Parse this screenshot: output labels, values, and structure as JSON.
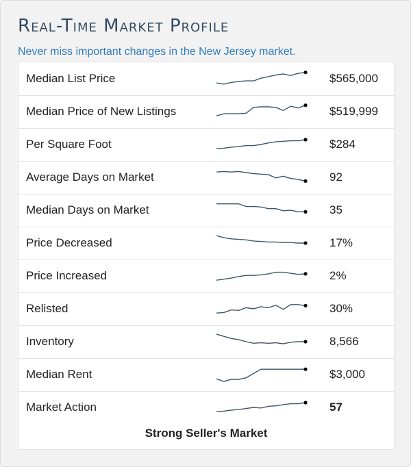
{
  "header": {
    "title": "Real-Time Market Profile",
    "subtitle": "Never miss important changes in the New Jersey market."
  },
  "colors": {
    "title": "#344a5f",
    "subtitle": "#2f7bbd",
    "sparkline": "#3c5568",
    "text": "#222222"
  },
  "metrics": [
    {
      "label": "Median List Price",
      "value": "$565,000",
      "trend": [
        40,
        38,
        41,
        43,
        44,
        44,
        49,
        52,
        55,
        57,
        54,
        58,
        60
      ]
    },
    {
      "label": "Median Price of New Listings",
      "value": "$519,999",
      "trend": [
        40,
        44,
        44,
        44,
        45,
        56,
        57,
        57,
        56,
        50,
        58,
        55,
        60
      ]
    },
    {
      "label": "Per Square Foot",
      "value": "$284",
      "trend": [
        40,
        41,
        43,
        44,
        46,
        46,
        48,
        51,
        53,
        54,
        55,
        55,
        57
      ]
    },
    {
      "label": "Average Days on Market",
      "value": "92",
      "trend": [
        58,
        59,
        58,
        59,
        57,
        55,
        54,
        53,
        47,
        50,
        46,
        44,
        41
      ]
    },
    {
      "label": "Median Days on Market",
      "value": "35",
      "trend": [
        60,
        60,
        60,
        60,
        55,
        55,
        54,
        51,
        51,
        47,
        48,
        45,
        45
      ]
    },
    {
      "label": "Price Decreased",
      "value": "17%",
      "trend": [
        62,
        58,
        56,
        55,
        54,
        52,
        51,
        50,
        50,
        49,
        49,
        48,
        48
      ]
    },
    {
      "label": "Price Increased",
      "value": "2%",
      "trend": [
        40,
        42,
        44,
        47,
        49,
        49,
        50,
        52,
        55,
        55,
        53,
        51,
        52
      ]
    },
    {
      "label": "Relisted",
      "value": "30%",
      "trend": [
        40,
        41,
        46,
        45,
        50,
        48,
        52,
        50,
        55,
        47,
        56,
        56,
        54
      ]
    },
    {
      "label": "Inventory",
      "value": "8,566",
      "trend": [
        62,
        58,
        54,
        52,
        48,
        45,
        46,
        45,
        46,
        44,
        47,
        48,
        48
      ]
    },
    {
      "label": "Median Rent",
      "value": "$3,000",
      "trend": [
        40,
        35,
        39,
        39,
        42,
        50,
        58,
        58,
        58,
        58,
        58,
        58,
        58
      ]
    },
    {
      "label": "Market Action",
      "value": "57",
      "trend": [
        40,
        41,
        43,
        44,
        46,
        48,
        47,
        50,
        51,
        53,
        55,
        55,
        57
      ]
    }
  ],
  "verdict": "Strong Seller's Market"
}
